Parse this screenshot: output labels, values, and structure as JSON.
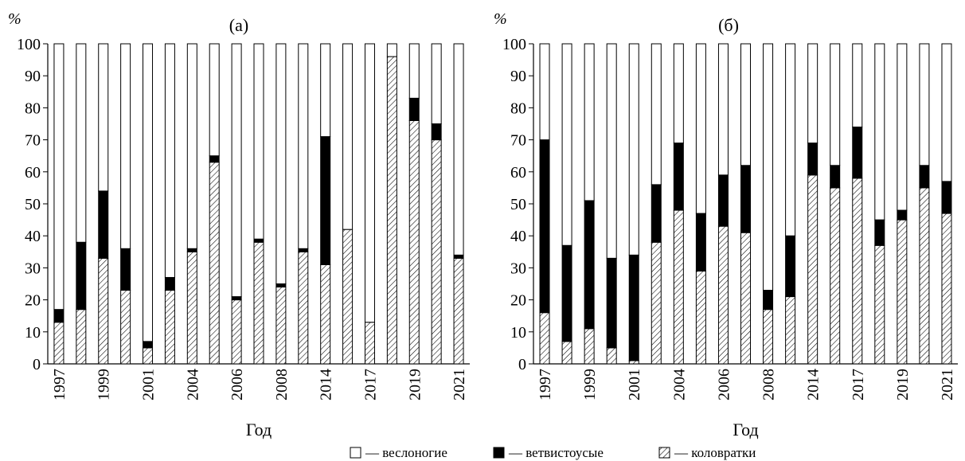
{
  "legend": {
    "copepods": "— веслоногие",
    "cladocera": "— ветвистоусые",
    "rotifers": "— коловратки"
  },
  "chart_data": [
    {
      "type": "bar",
      "stacked": true,
      "title": "(а)",
      "ylabel": "%",
      "xlabel": "Год",
      "ylim": [
        0,
        100
      ],
      "yticks": [
        0,
        10,
        20,
        30,
        40,
        50,
        60,
        70,
        80,
        90,
        100
      ],
      "categories": [
        "1997",
        "",
        "1999",
        "",
        "2001",
        "",
        "2004",
        "",
        "2006",
        "",
        "2008",
        "",
        "2014",
        "",
        "2017",
        "",
        "2019",
        "",
        "2021"
      ],
      "series": [
        {
          "name": "коловратки",
          "key": "rotifers",
          "values": [
            13,
            17,
            33,
            23,
            5,
            23,
            35,
            63,
            20,
            38,
            24,
            35,
            31,
            42,
            13,
            96,
            76,
            70,
            33
          ]
        },
        {
          "name": "ветвистоусые",
          "key": "cladocera",
          "values": [
            4,
            21,
            21,
            13,
            2,
            4,
            1,
            2,
            1,
            1,
            1,
            1,
            40,
            0,
            0,
            0,
            7,
            5,
            1
          ]
        },
        {
          "name": "веслоногие",
          "key": "copepods",
          "values": [
            83,
            62,
            46,
            64,
            93,
            73,
            64,
            35,
            79,
            61,
            75,
            64,
            29,
            58,
            87,
            4,
            17,
            25,
            66
          ]
        }
      ]
    },
    {
      "type": "bar",
      "stacked": true,
      "title": "(б)",
      "ylabel": "%",
      "xlabel": "Год",
      "ylim": [
        0,
        100
      ],
      "yticks": [
        0,
        10,
        20,
        30,
        40,
        50,
        60,
        70,
        80,
        90,
        100
      ],
      "categories": [
        "1997",
        "",
        "1999",
        "",
        "2001",
        "",
        "2004",
        "",
        "2006",
        "",
        "2008",
        "",
        "2014",
        "",
        "2017",
        "",
        "2019",
        "",
        "2021"
      ],
      "series": [
        {
          "name": "коловратки",
          "key": "rotifers",
          "values": [
            16,
            7,
            11,
            5,
            1,
            38,
            48,
            29,
            43,
            41,
            17,
            21,
            59,
            55,
            58,
            37,
            45,
            55,
            47
          ]
        },
        {
          "name": "ветвистоусые",
          "key": "cladocera",
          "values": [
            54,
            30,
            40,
            28,
            33,
            18,
            21,
            18,
            16,
            21,
            6,
            19,
            10,
            7,
            16,
            8,
            3,
            7,
            10
          ]
        },
        {
          "name": "веслоногие",
          "key": "copepods",
          "values": [
            30,
            63,
            49,
            67,
            66,
            44,
            31,
            53,
            41,
            38,
            77,
            60,
            31,
            38,
            26,
            55,
            52,
            38,
            43
          ]
        }
      ]
    }
  ]
}
